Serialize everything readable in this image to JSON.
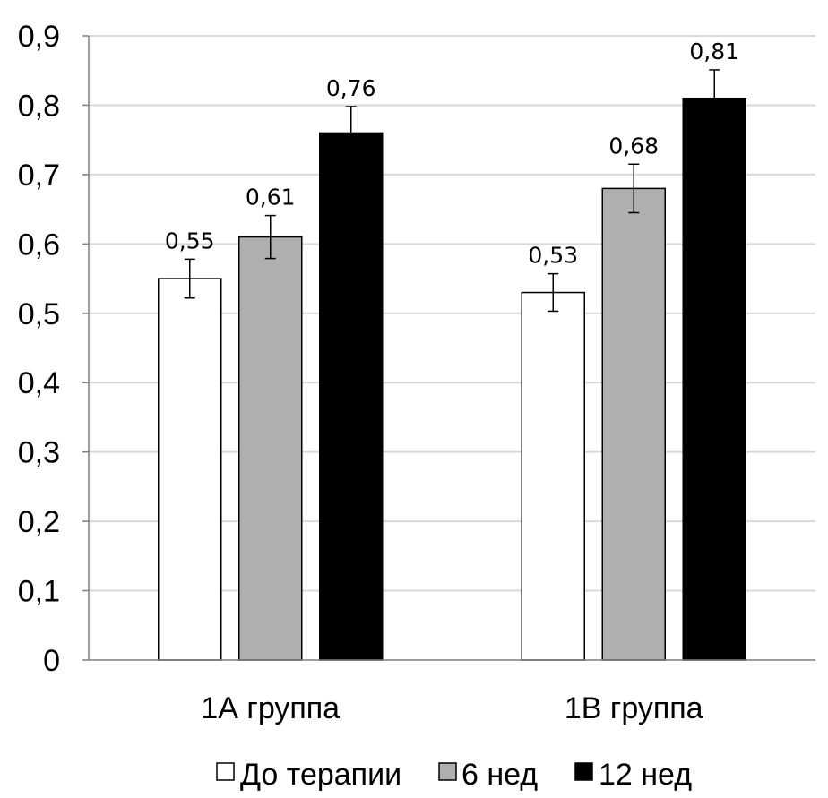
{
  "chart_data": {
    "type": "bar",
    "title": "",
    "xlabel": "",
    "ylabel": "",
    "categories": [
      "1А группа",
      "1В группа"
    ],
    "series": [
      {
        "name": "До терапии",
        "color": "#ffffff",
        "values": [
          0.55,
          0.53
        ],
        "errors": [
          0.028,
          0.027
        ],
        "labels": [
          "0,55",
          "0,53"
        ]
      },
      {
        "name": "6 нед",
        "color": "#b1afae",
        "values": [
          0.61,
          0.68
        ],
        "errors": [
          0.031,
          0.035
        ],
        "labels": [
          "0,61",
          "0,68"
        ]
      },
      {
        "name": "12 нед",
        "color": "#000000",
        "values": [
          0.76,
          0.81
        ],
        "errors": [
          0.038,
          0.041
        ],
        "labels": [
          "0,76",
          "0,81"
        ]
      }
    ],
    "ylim": [
      0,
      0.9
    ],
    "yticks": [
      0,
      0.1,
      0.2,
      0.3,
      0.4,
      0.5,
      0.6,
      0.7,
      0.8,
      0.9
    ],
    "ytick_labels": [
      "0",
      "0,1",
      "0,2",
      "0,3",
      "0,4",
      "0,5",
      "0,6",
      "0,7",
      "0,8",
      "0,9"
    ],
    "grid": true,
    "legend_position": "bottom"
  }
}
